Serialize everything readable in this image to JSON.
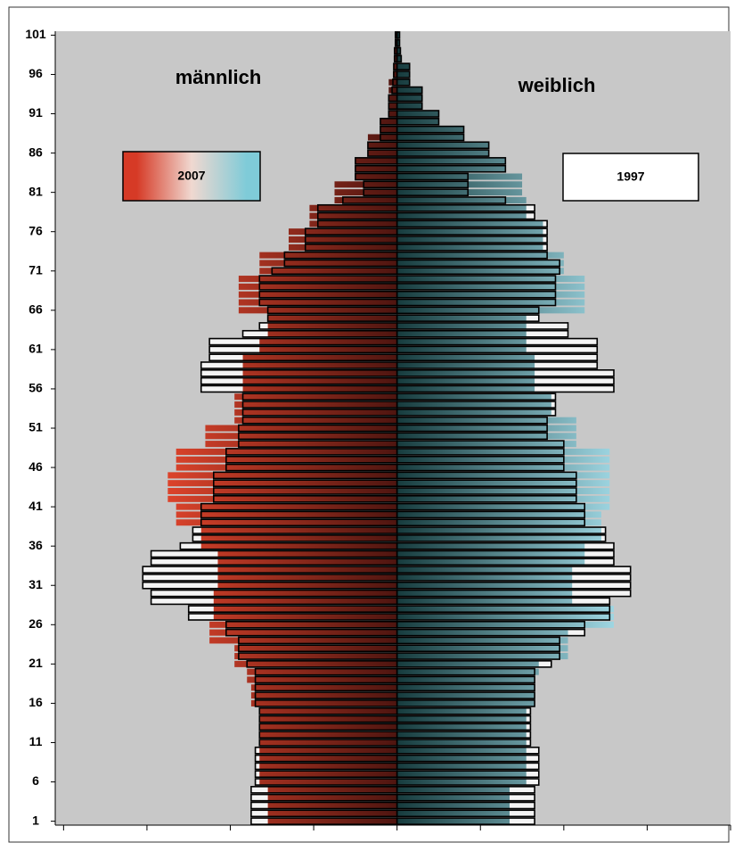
{
  "chart_data": {
    "type": "pyramid",
    "sides": [
      "männlich",
      "weiblich"
    ],
    "categories": [
      1,
      null,
      null,
      null,
      null,
      6,
      null,
      null,
      null,
      null,
      11,
      null,
      null,
      null,
      null,
      16,
      null,
      null,
      null,
      null,
      21,
      null,
      null,
      null,
      null,
      26,
      null,
      null,
      null,
      null,
      31,
      null,
      null,
      null,
      null,
      36,
      null,
      null,
      null,
      null,
      41,
      null,
      null,
      null,
      null,
      46,
      null,
      null,
      null,
      null,
      51,
      null,
      null,
      null,
      null,
      56,
      null,
      null,
      null,
      null,
      61,
      null,
      null,
      null,
      null,
      66,
      null,
      null,
      null,
      null,
      71,
      null,
      null,
      null,
      null,
      76,
      null,
      null,
      null,
      null,
      81,
      null,
      null,
      null,
      null,
      86,
      null,
      null,
      null,
      null,
      91,
      null,
      null,
      null,
      null,
      96,
      null,
      null,
      null,
      null,
      101
    ],
    "series": [
      {
        "name": "2007",
        "style": "filled",
        "colors": [
          "#e2452c",
          "#9ed6e2"
        ],
        "male": [
          155,
          155,
          155,
          155,
          155,
          165,
          165,
          165,
          165,
          165,
          165,
          165,
          165,
          165,
          165,
          175,
          175,
          175,
          180,
          180,
          195,
          195,
          195,
          225,
          225,
          225,
          220,
          220,
          220,
          220,
          215,
          215,
          215,
          215,
          215,
          235,
          235,
          235,
          265,
          265,
          265,
          275,
          275,
          275,
          275,
          265,
          265,
          265,
          230,
          230,
          230,
          195,
          195,
          195,
          195,
          185,
          185,
          185,
          185,
          185,
          165,
          165,
          155,
          155,
          155,
          190,
          190,
          190,
          190,
          190,
          165,
          165,
          165,
          130,
          130,
          130,
          105,
          105,
          105,
          75,
          75,
          75,
          50,
          50,
          50,
          35,
          35,
          35,
          20,
          20,
          10,
          10,
          10,
          10,
          10,
          5,
          4,
          4,
          3,
          2,
          2
        ],
        "female": [
          135,
          135,
          135,
          135,
          135,
          155,
          155,
          155,
          155,
          155,
          155,
          155,
          155,
          155,
          155,
          165,
          165,
          165,
          165,
          170,
          170,
          205,
          205,
          205,
          205,
          260,
          260,
          260,
          210,
          210,
          210,
          210,
          210,
          225,
          225,
          225,
          245,
          245,
          245,
          245,
          255,
          255,
          255,
          255,
          255,
          255,
          255,
          255,
          215,
          215,
          215,
          215,
          185,
          185,
          185,
          165,
          165,
          165,
          165,
          165,
          155,
          155,
          155,
          155,
          155,
          225,
          225,
          225,
          225,
          225,
          200,
          200,
          200,
          175,
          175,
          175,
          175,
          155,
          155,
          155,
          150,
          150,
          150,
          130,
          130,
          110,
          110,
          80,
          80,
          50,
          50,
          30,
          30,
          30,
          15,
          15,
          15,
          5,
          4,
          3,
          3
        ]
      },
      {
        "name": "1997",
        "style": "outline",
        "colors": [
          "#f4f4f4",
          "#f4f4f4"
        ],
        "male": [
          175,
          175,
          175,
          175,
          175,
          170,
          170,
          170,
          170,
          170,
          165,
          165,
          165,
          165,
          165,
          170,
          170,
          170,
          170,
          170,
          180,
          190,
          190,
          190,
          205,
          205,
          250,
          250,
          295,
          295,
          305,
          305,
          305,
          295,
          295,
          260,
          245,
          245,
          235,
          235,
          235,
          220,
          220,
          220,
          220,
          205,
          205,
          205,
          190,
          190,
          190,
          185,
          185,
          185,
          185,
          235,
          235,
          235,
          235,
          225,
          225,
          225,
          185,
          165,
          155,
          155,
          165,
          165,
          165,
          165,
          150,
          135,
          135,
          110,
          110,
          110,
          95,
          95,
          95,
          65,
          40,
          40,
          50,
          50,
          50,
          35,
          35,
          20,
          20,
          20,
          10,
          10,
          10,
          6,
          5,
          4,
          4,
          3,
          3,
          2,
          2
        ],
        "female": [
          165,
          165,
          165,
          165,
          165,
          170,
          170,
          170,
          170,
          170,
          160,
          160,
          160,
          160,
          160,
          165,
          165,
          165,
          165,
          165,
          185,
          195,
          195,
          195,
          225,
          225,
          255,
          255,
          255,
          280,
          280,
          280,
          280,
          260,
          260,
          260,
          250,
          250,
          225,
          225,
          225,
          215,
          215,
          215,
          215,
          200,
          200,
          200,
          200,
          180,
          180,
          180,
          190,
          190,
          190,
          260,
          260,
          260,
          240,
          240,
          240,
          240,
          205,
          205,
          170,
          170,
          190,
          190,
          190,
          190,
          195,
          195,
          180,
          180,
          180,
          180,
          180,
          165,
          165,
          130,
          85,
          85,
          85,
          130,
          130,
          110,
          110,
          80,
          80,
          50,
          50,
          30,
          30,
          30,
          15,
          15,
          15,
          5,
          4,
          3,
          3
        ]
      }
    ],
    "xlim": [
      -410,
      400
    ],
    "xticks": [
      -400,
      -300,
      -200,
      -100,
      0,
      100,
      200,
      300,
      400
    ],
    "ylim": [
      0.5,
      101.5
    ]
  }
}
